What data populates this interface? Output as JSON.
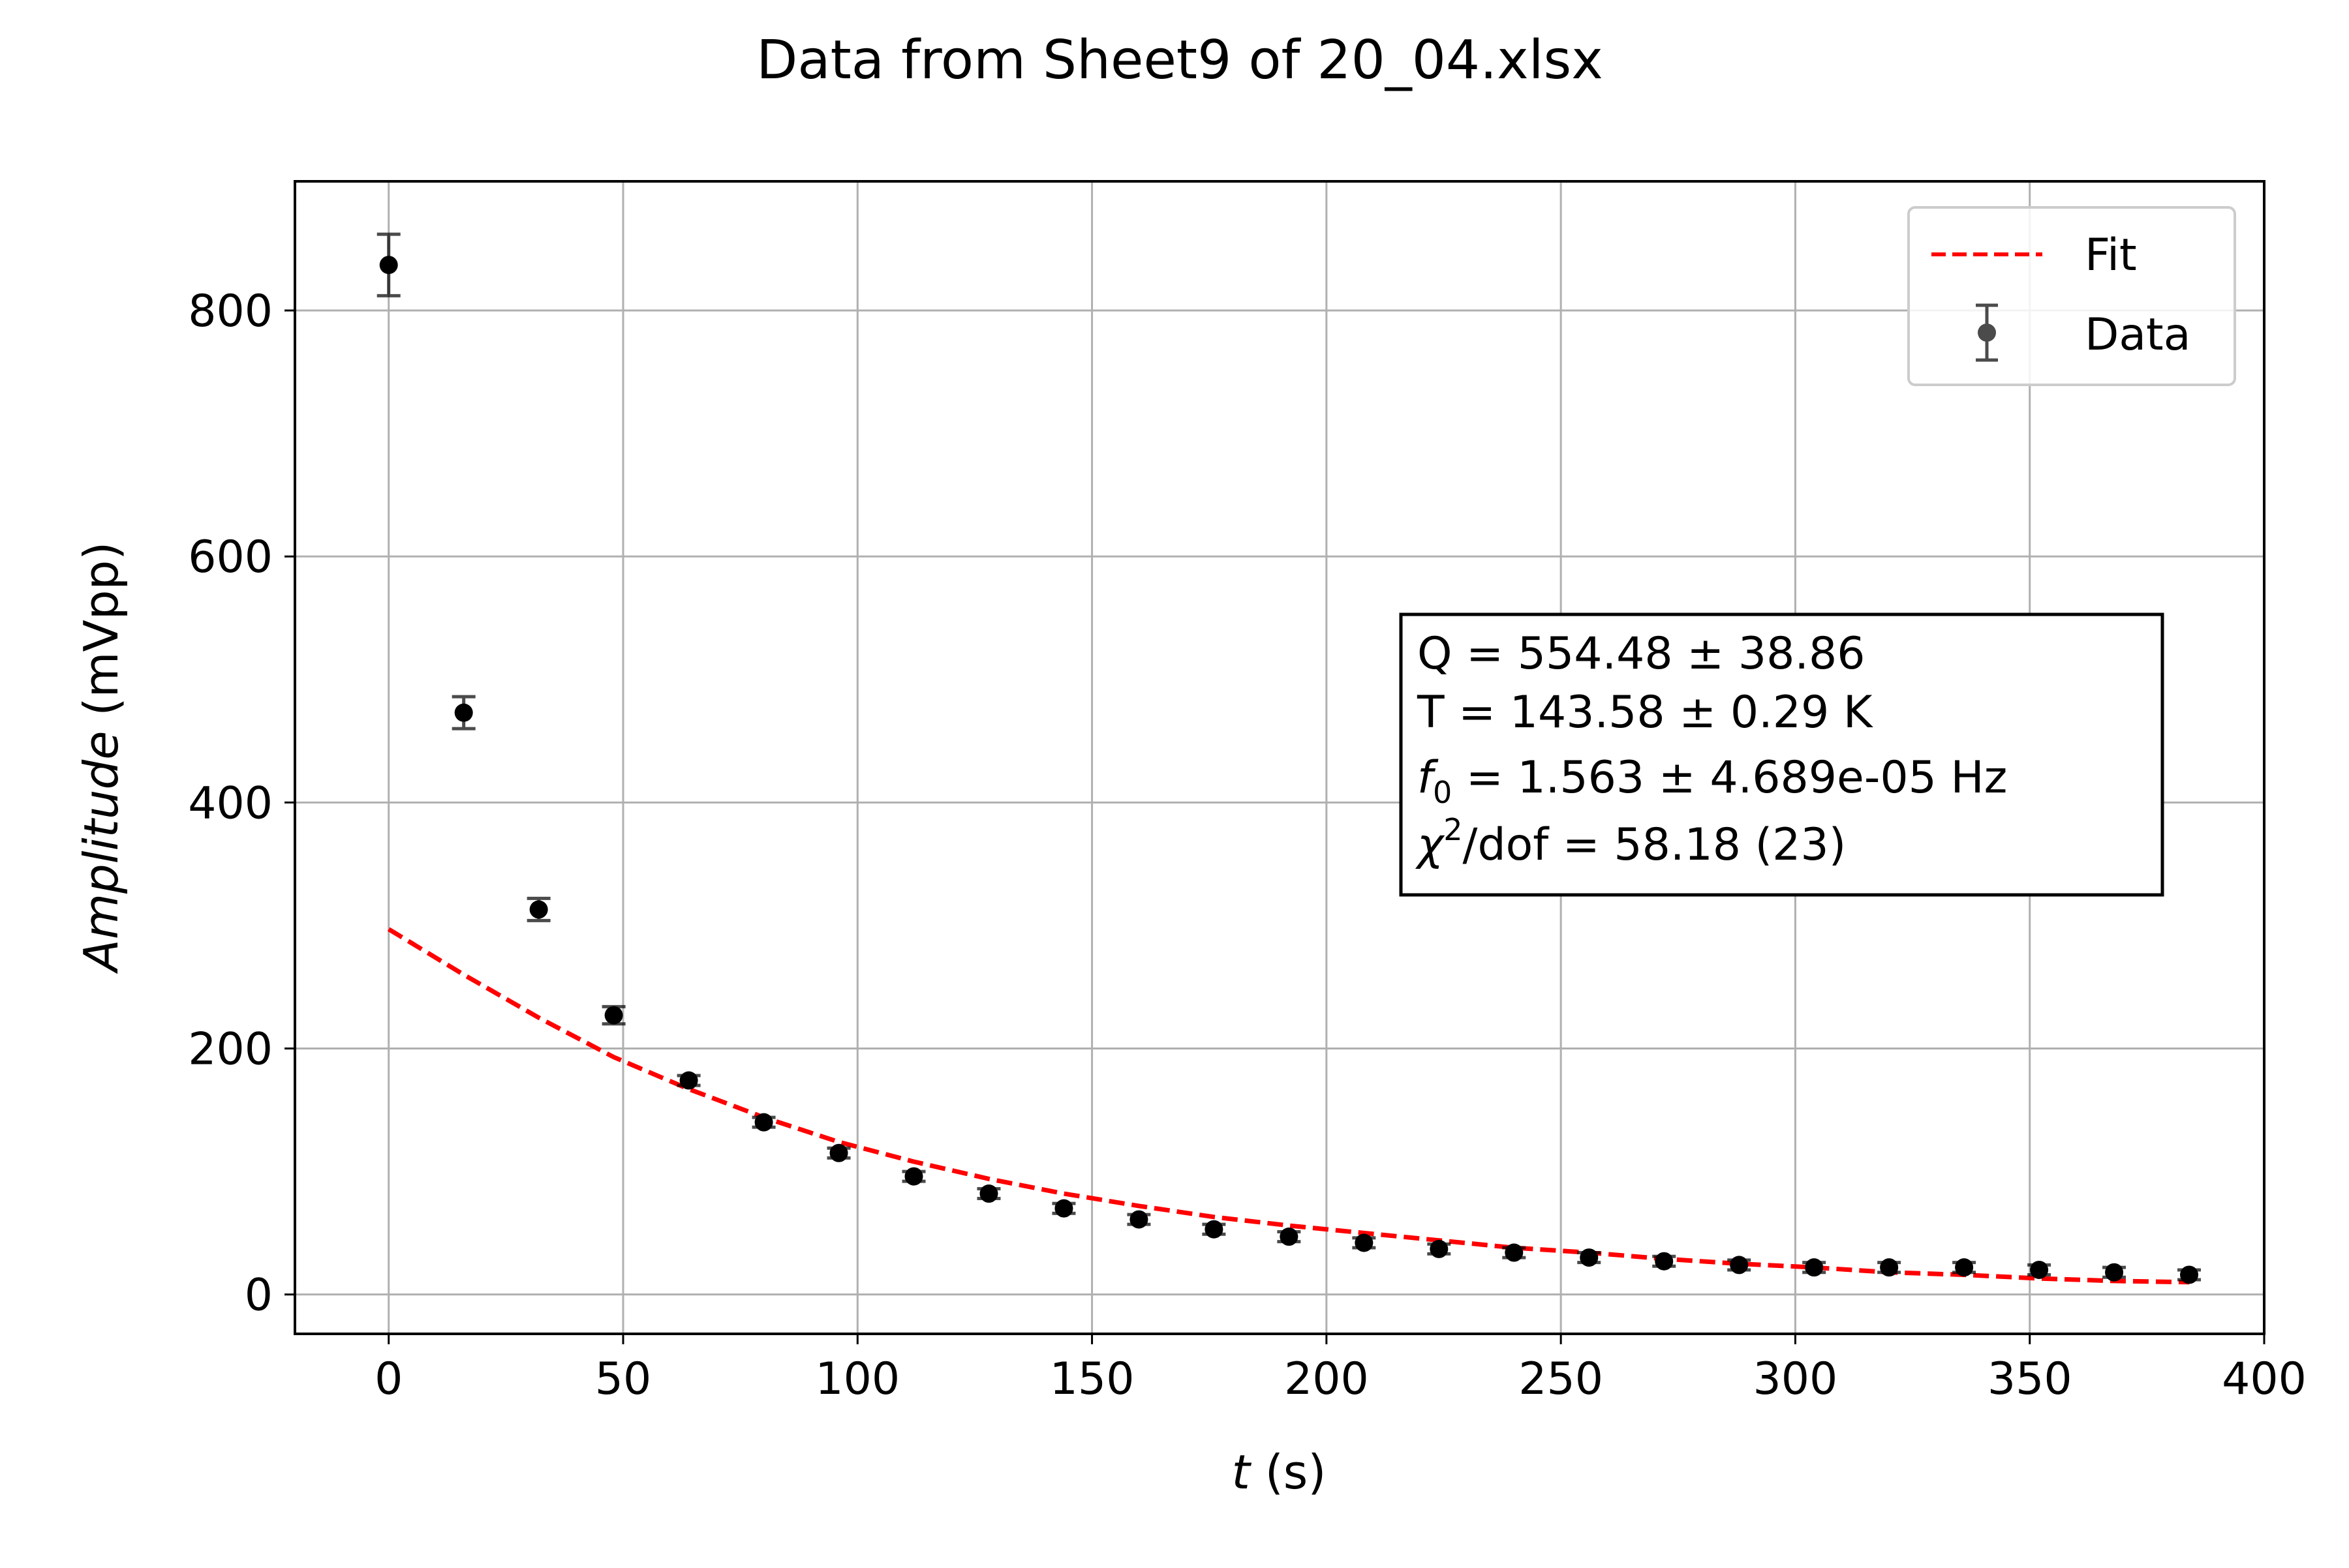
{
  "chart_data": {
    "type": "scatter",
    "title": "Data from Sheet9 of 20_04.xlsx",
    "xlabel_symbol": "t",
    "xlabel_unit": " (s)",
    "ylabel_symbol": "Amplitude",
    "ylabel_unit": " (mVpp)",
    "xlim": [
      -20,
      400
    ],
    "ylim": [
      -32,
      905
    ],
    "xticks": [
      0,
      50,
      100,
      150,
      200,
      250,
      300,
      350,
      400
    ],
    "yticks": [
      0,
      200,
      400,
      600,
      800
    ],
    "grid": true,
    "legend_position": "top-right",
    "series": [
      {
        "name": "Data",
        "kind": "errorbar",
        "color": "#000000",
        "x": [
          0,
          16,
          32,
          48,
          64,
          80,
          96,
          112,
          128,
          144,
          160,
          176,
          192,
          208,
          224,
          240,
          256,
          272,
          288,
          304,
          320,
          336,
          352,
          368,
          384
        ],
        "y": [
          837,
          473,
          313,
          227,
          174,
          140,
          115,
          96,
          82,
          70,
          61,
          53,
          47,
          42,
          37,
          34,
          30,
          27,
          24,
          22,
          22,
          22,
          20,
          18,
          16
        ],
        "yerr": [
          25,
          13,
          9,
          7,
          4,
          4,
          4,
          4,
          4,
          4,
          4,
          4,
          4,
          4,
          4,
          4,
          4,
          4,
          4,
          4,
          4,
          4,
          4,
          4,
          4
        ]
      },
      {
        "name": "Fit",
        "kind": "line",
        "color": "#ff0000",
        "dashed": true,
        "x": [
          0,
          16,
          32,
          48,
          64,
          80,
          96,
          112,
          128,
          144,
          160,
          176,
          192,
          208,
          224,
          240,
          256,
          272,
          288,
          304,
          320,
          336,
          352,
          368,
          384
        ],
        "y": [
          297,
          260,
          225,
          193,
          167,
          144,
          124,
          108,
          94,
          82,
          72,
          63,
          56,
          50,
          44,
          38,
          34,
          29,
          25,
          22,
          18,
          16,
          13,
          11,
          10
        ]
      }
    ],
    "annotation_lines": [
      "Q = 554.48 ± 38.86",
      "T = 143.58 ± 0.29 K",
      "f",
      "0",
      " = 1.563 ± 4.689e-05 Hz",
      "χ",
      "2",
      "/dof = 58.18 (23)"
    ]
  }
}
